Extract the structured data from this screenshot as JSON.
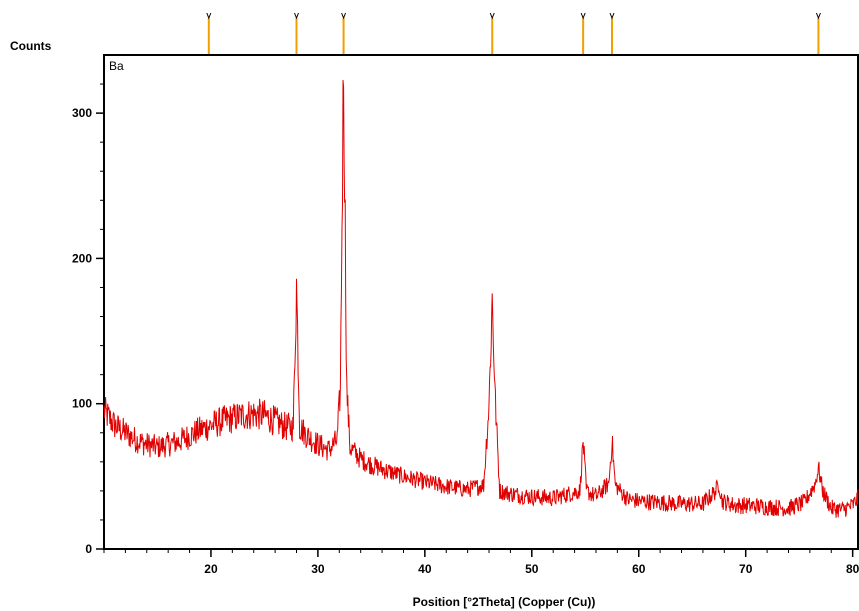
{
  "chart_data": {
    "type": "line",
    "title": "",
    "sample_label": "Ba",
    "xlabel": "Position [°2Theta] (Copper (Cu))",
    "ylabel": "Counts",
    "xlim": [
      10,
      80.5
    ],
    "ylim": [
      0,
      340
    ],
    "x_ticks": [
      20,
      30,
      40,
      50,
      60,
      70,
      80
    ],
    "x_tick_labels": [
      "20",
      "30",
      "40",
      "50",
      "60",
      "70",
      "80"
    ],
    "y_ticks": [
      0,
      100,
      200,
      300
    ],
    "y_tick_labels": [
      "0",
      "100",
      "200",
      "300"
    ],
    "x_minor_tick_step": 2,
    "y_minor_tick_step": 20,
    "grid": false,
    "series": [
      {
        "color": "#e00000",
        "points": [
          [
            10,
            95
          ],
          [
            11,
            85
          ],
          [
            12,
            80
          ],
          [
            13,
            75
          ],
          [
            14,
            72
          ],
          [
            15,
            70
          ],
          [
            16,
            72
          ],
          [
            17,
            74
          ],
          [
            18,
            78
          ],
          [
            19,
            82
          ],
          [
            20,
            85
          ],
          [
            21,
            88
          ],
          [
            22,
            90
          ],
          [
            23,
            92
          ],
          [
            24,
            93
          ],
          [
            25,
            92
          ],
          [
            26,
            88
          ],
          [
            27,
            84
          ],
          [
            27.7,
            84
          ],
          [
            28.0,
            182
          ],
          [
            28.3,
            84
          ],
          [
            29,
            78
          ],
          [
            30,
            72
          ],
          [
            31,
            68
          ],
          [
            31.8,
            75
          ],
          [
            32.1,
            110
          ],
          [
            32.4,
            336
          ],
          [
            32.7,
            110
          ],
          [
            33,
            70
          ],
          [
            34,
            62
          ],
          [
            35,
            58
          ],
          [
            36,
            55
          ],
          [
            38,
            50
          ],
          [
            40,
            46
          ],
          [
            42,
            43
          ],
          [
            44,
            41
          ],
          [
            45.5,
            44
          ],
          [
            46.0,
            100
          ],
          [
            46.3,
            172
          ],
          [
            46.6,
            100
          ],
          [
            47,
            40
          ],
          [
            48,
            38
          ],
          [
            50,
            36
          ],
          [
            52,
            35
          ],
          [
            54.5,
            40
          ],
          [
            54.8,
            75
          ],
          [
            55.1,
            40
          ],
          [
            56,
            36
          ],
          [
            57.2,
            45
          ],
          [
            57.5,
            75
          ],
          [
            57.8,
            44
          ],
          [
            59,
            34
          ],
          [
            60,
            33
          ],
          [
            62,
            32
          ],
          [
            64,
            31
          ],
          [
            66,
            31
          ],
          [
            67.2,
            40
          ],
          [
            67.5,
            45
          ],
          [
            67.8,
            33
          ],
          [
            69,
            30
          ],
          [
            70,
            30
          ],
          [
            72,
            29
          ],
          [
            74,
            28
          ],
          [
            75.5,
            32
          ],
          [
            76.5,
            45
          ],
          [
            76.8,
            56
          ],
          [
            77.2,
            40
          ],
          [
            78,
            28
          ],
          [
            79,
            27
          ],
          [
            80,
            30
          ],
          [
            80.5,
            35
          ]
        ]
      }
    ],
    "reference_peaks": [
      19.8,
      28.0,
      32.4,
      46.3,
      54.8,
      57.5,
      76.8
    ]
  }
}
